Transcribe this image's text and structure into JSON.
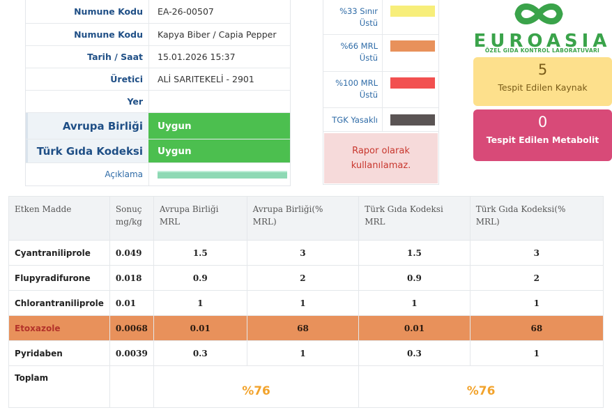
{
  "info": {
    "rows": [
      {
        "label": "Numune Kodu",
        "value": "EA-26-00507"
      },
      {
        "label": "Numune Kodu",
        "value": "Kapya Biber / Capia Pepper"
      },
      {
        "label": "Tarih / Saat",
        "value": "15.01.2026 15:37"
      },
      {
        "label": "Üretici",
        "value": "ALİ SARITEKELİ - 2901"
      },
      {
        "label": "Yer",
        "value": ""
      }
    ],
    "eu_label": "Avrupa Birliği",
    "eu_value": "Uygun",
    "tgk_label": "Türk Gıda Kodeksi",
    "tgk_value": "Uygun",
    "desc_label": "Açıklama",
    "desc_bar_color": "#8ed9b4"
  },
  "legend": {
    "items": [
      {
        "line1": "%33 Sınır",
        "line2": "Üstü",
        "color": "#f7ee7a"
      },
      {
        "line1": "%66 MRL",
        "line2": "Üstü",
        "color": "#e8915b"
      },
      {
        "line1": "%100 MRL",
        "line2": "Üstü",
        "color": "#f25050"
      },
      {
        "line1": "TGK Yasaklı",
        "line2": "",
        "color": "#5a5454"
      }
    ],
    "warning_line1": "Rapor olarak",
    "warning_line2": "kullanılamaz."
  },
  "logo": {
    "name": "EUROASIA",
    "subtitle": "ÖZEL GIDA KONTROL LABORATUVARI",
    "color": "#3aa34a"
  },
  "stats": {
    "sources_count": "5",
    "sources_label": "Tespit Edilen Kaynak",
    "metabolite_count": "0",
    "metabolite_label": "Tespit Edilen Metabolit"
  },
  "table": {
    "headers": [
      {
        "line1": "Etken Madde",
        "line2": ""
      },
      {
        "line1": "Sonuç",
        "line2": "mg/kg"
      },
      {
        "line1": "Avrupa Birliği",
        "line2": "MRL"
      },
      {
        "line1": "Avrupa Birliği(%",
        "line2": "MRL)"
      },
      {
        "line1": "Türk Gıda Kodeksi",
        "line2": "MRL"
      },
      {
        "line1": "Türk Gıda Kodeksi(%",
        "line2": "MRL)"
      }
    ],
    "rows": [
      {
        "name": "Cyantraniliprole",
        "result": "0.049",
        "eu_mrl": "1.5",
        "eu_pct": "3",
        "tgk_mrl": "1.5",
        "tgk_pct": "3",
        "highlight": false
      },
      {
        "name": "Flupyradifurone",
        "result": "0.018",
        "eu_mrl": "0.9",
        "eu_pct": "2",
        "tgk_mrl": "0.9",
        "tgk_pct": "2",
        "highlight": false
      },
      {
        "name": "Chlorantraniliprole",
        "result": "0.01",
        "eu_mrl": "1",
        "eu_pct": "1",
        "tgk_mrl": "1",
        "tgk_pct": "1",
        "highlight": false
      },
      {
        "name": "Etoxazole",
        "result": "0.0068",
        "eu_mrl": "0.01",
        "eu_pct": "68",
        "tgk_mrl": "0.01",
        "tgk_pct": "68",
        "highlight": true
      },
      {
        "name": "Pyridaben",
        "result": "0.0039",
        "eu_mrl": "0.3",
        "eu_pct": "1",
        "tgk_mrl": "0.3",
        "tgk_pct": "1",
        "highlight": false
      }
    ],
    "total_label": "Toplam",
    "eu_total": "%76",
    "tgk_total": "%76",
    "highlight_color": "#e8915b",
    "total_color": "#f2a32c"
  }
}
